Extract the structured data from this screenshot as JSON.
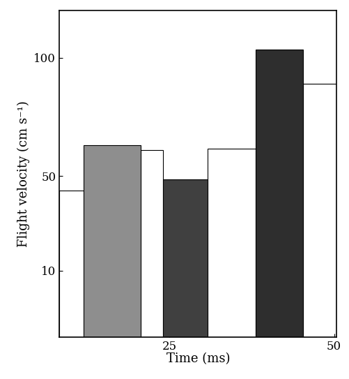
{
  "chart_data": {
    "type": "bar",
    "x_label": "Time (ms)",
    "y_label": "Flight velocity (cm s⁻¹)",
    "xlim": [
      8.3,
      50.4
    ],
    "xticks": [
      25,
      50
    ],
    "ylim": [
      -18,
      120
    ],
    "yticks": [
      10,
      50,
      100
    ],
    "series": [
      {
        "x_start": [
          8.3,
          20.6,
          30.8,
          45.3
        ],
        "x_end": [
          12.0,
          24.0,
          38.1,
          50.4
        ],
        "values": [
          43.8,
          61,
          61.5,
          89
        ],
        "color": "#ffffff"
      },
      {
        "x_start": [
          12.0,
          24.0,
          38.1
        ],
        "x_end": [
          20.6,
          30.8,
          45.3
        ],
        "values": [
          63,
          48.5,
          103.5
        ],
        "colors": [
          "#8e8e8e",
          "#404040",
          "#2e2e2e"
        ]
      }
    ]
  }
}
